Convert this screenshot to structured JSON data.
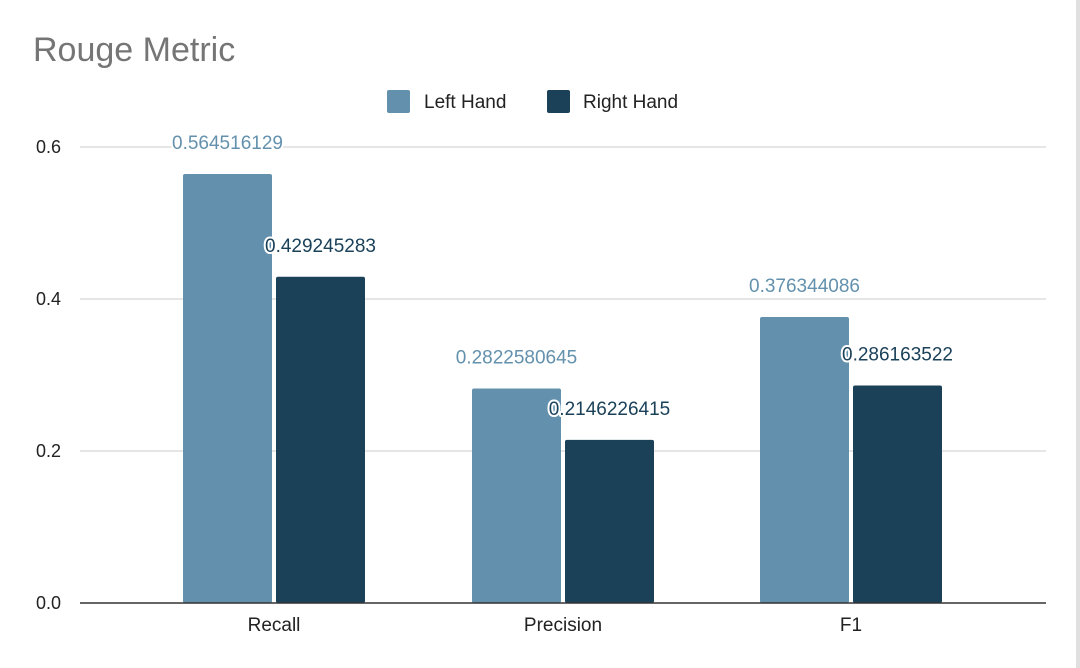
{
  "chart_data": {
    "type": "bar",
    "title": "Rouge Metric",
    "categories": [
      "Recall",
      "Precision",
      "F1"
    ],
    "series": [
      {
        "name": "Left Hand",
        "color": "#6391ad",
        "values": [
          0.564516129,
          0.2822580645,
          0.376344086
        ],
        "labels": [
          "0.564516129",
          "0.2822580645",
          "0.376344086"
        ]
      },
      {
        "name": "Right Hand",
        "color": "#1b4159",
        "values": [
          0.429245283,
          0.2146226415,
          0.286163522
        ],
        "labels": [
          "0.429245283",
          "0.2146226415",
          "0.286163522"
        ]
      }
    ],
    "yticks": [
      "0.0",
      "0.2",
      "0.4",
      "0.6"
    ],
    "ylim": [
      0,
      0.6
    ],
    "grid": true,
    "legend_position": "top-center",
    "xlabel": "",
    "ylabel": ""
  }
}
